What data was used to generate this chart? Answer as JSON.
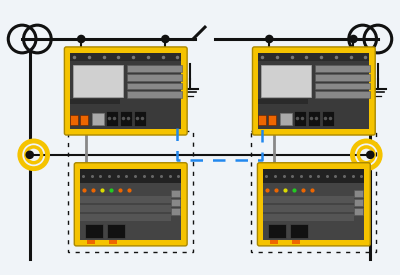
{
  "bg_color": "#f0f4f8",
  "line_color": "#111111",
  "dashed_color": "#2288ee",
  "yellow": "#F5C300",
  "dark_body": "#3a3a3a",
  "screen_color": "#cccccc",
  "orange": "#EE6600",
  "gray_wire": "#888888",
  "figw": 4.0,
  "figh": 2.75,
  "dpi": 100
}
